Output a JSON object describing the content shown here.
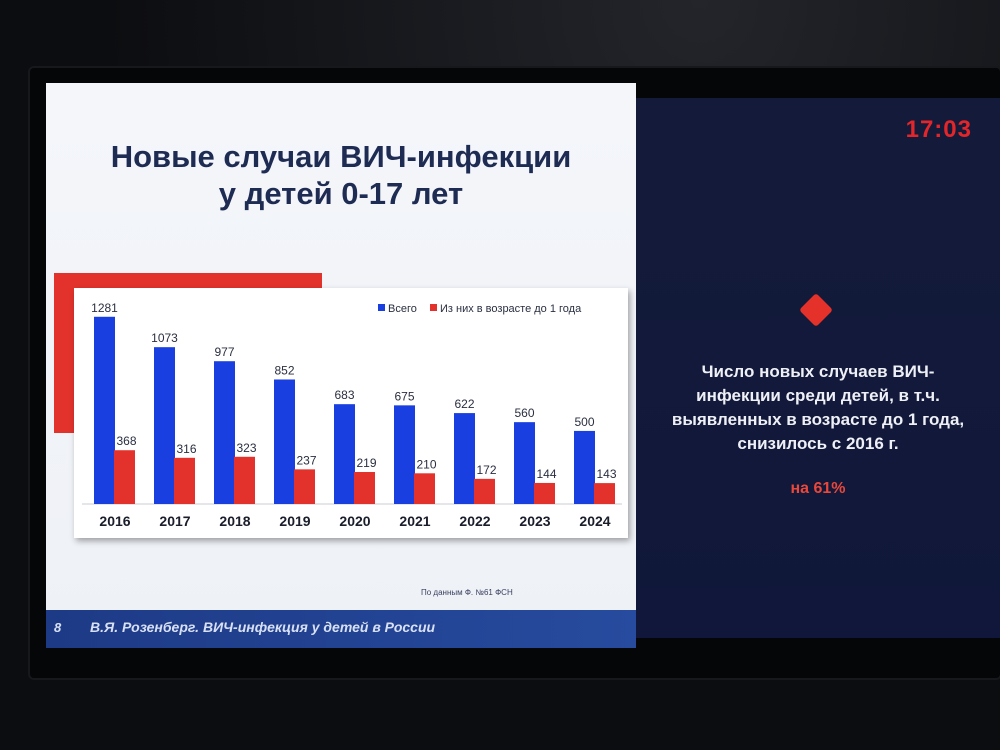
{
  "slide": {
    "title_line1": "Новые случаи ВИЧ-инфекции",
    "title_line2": "у детей 0-17 лет",
    "source_note": "По данным Ф. №61 ФСН",
    "page_number": "8",
    "footer_text": "В.Я. Розенберг. ВИЧ-инфекция у детей в России"
  },
  "panel": {
    "clock": "17:03",
    "text_lines": [
      "Число новых случаев ВИЧ-",
      "инфекции среди детей, в т.ч.",
      "выявленных в возрасте до 1 года,",
      "снизилось с 2016 г."
    ],
    "highlight": "на 61%",
    "diamond_icon": "diamond-bullet-icon"
  },
  "colors": {
    "series_total": "#1a3fe0",
    "series_infants": "#e2322b",
    "footer": "#1d3a86",
    "panel": "#141b3a",
    "clock": "#e3262a"
  },
  "chart_data": {
    "type": "bar",
    "categories": [
      "2016",
      "2017",
      "2018",
      "2019",
      "2020",
      "2021",
      "2022",
      "2023",
      "2024"
    ],
    "series": [
      {
        "name": "Всего",
        "values": [
          1281,
          1073,
          977,
          852,
          683,
          675,
          622,
          560,
          500
        ]
      },
      {
        "name": "Из них в возрасте до 1 года",
        "values": [
          368,
          316,
          323,
          237,
          219,
          210,
          172,
          144,
          143
        ]
      }
    ],
    "title": "",
    "xlabel": "",
    "ylabel": "",
    "ylim": [
      0,
      1300
    ],
    "grid": false,
    "legend": "top-right"
  }
}
